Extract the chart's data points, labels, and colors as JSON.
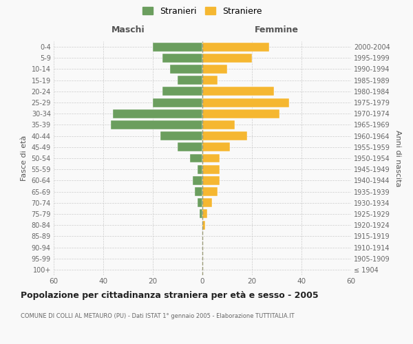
{
  "age_groups": [
    "100+",
    "95-99",
    "90-94",
    "85-89",
    "80-84",
    "75-79",
    "70-74",
    "65-69",
    "60-64",
    "55-59",
    "50-54",
    "45-49",
    "40-44",
    "35-39",
    "30-34",
    "25-29",
    "20-24",
    "15-19",
    "10-14",
    "5-9",
    "0-4"
  ],
  "birth_years": [
    "≤ 1904",
    "1905-1909",
    "1910-1914",
    "1915-1919",
    "1920-1924",
    "1925-1929",
    "1930-1934",
    "1935-1939",
    "1940-1944",
    "1945-1949",
    "1950-1954",
    "1955-1959",
    "1960-1964",
    "1965-1969",
    "1970-1974",
    "1975-1979",
    "1980-1984",
    "1985-1989",
    "1990-1994",
    "1995-1999",
    "2000-2004"
  ],
  "maschi": [
    0,
    0,
    0,
    0,
    0,
    1,
    2,
    3,
    4,
    2,
    5,
    10,
    17,
    37,
    36,
    20,
    16,
    10,
    13,
    16,
    20
  ],
  "femmine": [
    0,
    0,
    0,
    0,
    1,
    2,
    4,
    6,
    7,
    7,
    7,
    11,
    18,
    13,
    31,
    35,
    29,
    6,
    10,
    20,
    27
  ],
  "maschi_color": "#6b9e5e",
  "femmine_color": "#f5b731",
  "background_color": "#f9f9f9",
  "grid_color": "#cccccc",
  "title": "Popolazione per cittadinanza straniera per età e sesso - 2005",
  "subtitle": "COMUNE DI COLLI AL METAURO (PU) - Dati ISTAT 1° gennaio 2005 - Elaborazione TUTTITALIA.IT",
  "xlabel_left": "Maschi",
  "xlabel_right": "Femmine",
  "ylabel_left": "Fasce di età",
  "ylabel_right": "Anni di nascita",
  "legend_maschi": "Stranieri",
  "legend_femmine": "Straniere",
  "xlim": 60,
  "dashed_color": "#aaaaaa"
}
